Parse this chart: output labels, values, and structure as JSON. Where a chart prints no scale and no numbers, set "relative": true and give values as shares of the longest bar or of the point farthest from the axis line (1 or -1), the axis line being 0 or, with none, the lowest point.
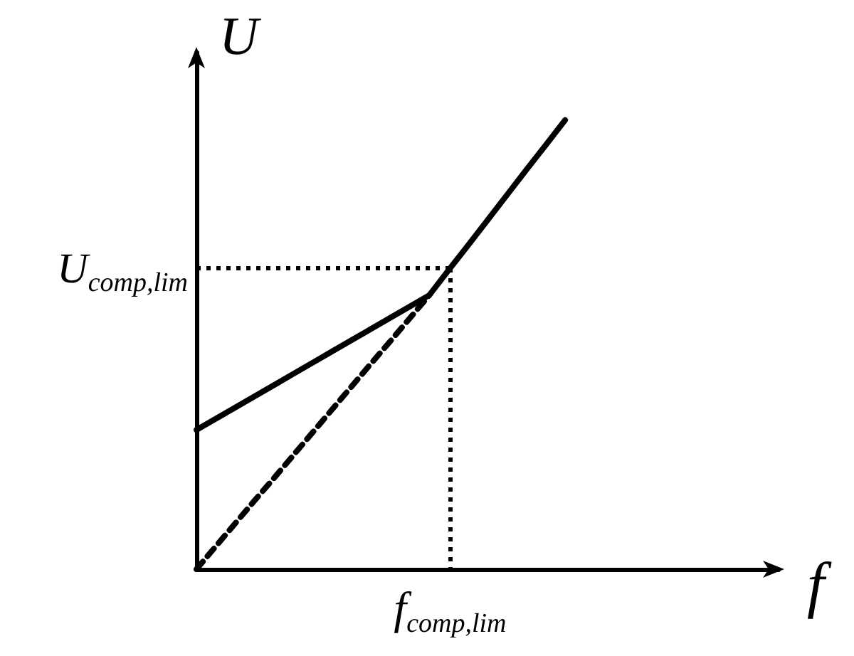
{
  "chart_data": {
    "type": "line",
    "relative": true,
    "xlabel": "f",
    "ylabel": "U",
    "categories": [
      null,
      null,
      null,
      null,
      null,
      null,
      null,
      null,
      null,
      null,
      null,
      null,
      null,
      null,
      null,
      null,
      null,
      null,
      null,
      null,
      null,
      null,
      null,
      null,
      null,
      null,
      null,
      null,
      null,
      null,
      null
    ],
    "series": [
      {
        "values": [
          0.31,
          0.335,
          0.36,
          0.385,
          0.41,
          0.435,
          0.46,
          0.485,
          0.51,
          0.535,
          0.56,
          0.585,
          0.61,
          0.666,
          0.721,
          0.777,
          0.833,
          0.889,
          0.944,
          1,
          null,
          null,
          null,
          null,
          null,
          null,
          null,
          null,
          null,
          null,
          null
        ],
        "color": "#000000",
        "line_style": "solid"
      },
      {
        "values": [
          0,
          0.051,
          0.102,
          0.153,
          0.203,
          0.254,
          0.305,
          0.356,
          0.407,
          0.458,
          0.508,
          0.559,
          0.61,
          null,
          null,
          null,
          null,
          null,
          null,
          null,
          null,
          null,
          null,
          null,
          null,
          null,
          null,
          null,
          null,
          null,
          null
        ],
        "color": "#000000",
        "line_style": "dashed"
      }
    ],
    "ref_lines": [
      {
        "axis": "y",
        "value": 0.67,
        "label": "U$_{comp,lim}$",
        "color": "#000000",
        "line_style": "dotted"
      }
    ],
    "annotations": [
      "f$_{comp,lim}$"
    ],
    "marker": "none",
    "grid": false,
    "tick_labels": false
  }
}
